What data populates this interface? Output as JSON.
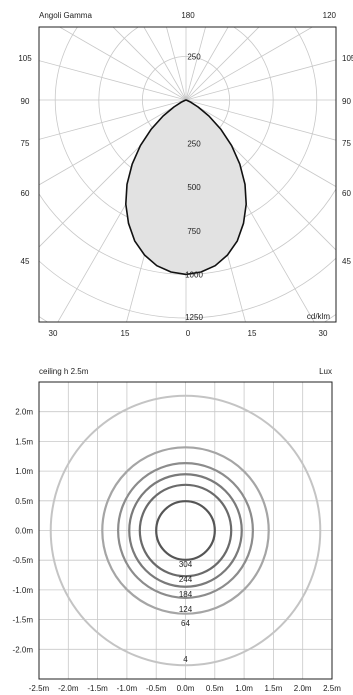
{
  "chart_data": [
    {
      "type": "polar",
      "title": "Angoli Gamma",
      "unit": "cd/klm",
      "radial_ticks": [
        "250",
        "500",
        "750",
        "1000",
        "1250"
      ],
      "radial_range": [
        0,
        1250
      ],
      "top_labels": {
        "center": "180",
        "right": "120"
      },
      "side_angle_labels": [
        "105",
        "90",
        "75",
        "60",
        "45"
      ],
      "bottom_labels": [
        "30",
        "15",
        "0",
        "15",
        "30"
      ],
      "upper_tick": "250",
      "series": [
        {
          "angles_deg": [
            0,
            5,
            10,
            15,
            20,
            25,
            30,
            35,
            40,
            45,
            50,
            55,
            60,
            65,
            70,
            75,
            80,
            85,
            90
          ],
          "values": [
            1000,
            990,
            965,
            920,
            860,
            780,
            690,
            590,
            480,
            370,
            260,
            160,
            80,
            30,
            8,
            2,
            0,
            0,
            0
          ]
        }
      ],
      "grid": true
    },
    {
      "type": "isolux",
      "title": "ceiling h 2.5m",
      "unit": "Lux",
      "x_ticks": [
        "-2.5m",
        "-2.0m",
        "-1.5m",
        "-1.0m",
        "-0.5m",
        "0.0m",
        "0.5m",
        "1.0m",
        "1.5m",
        "2.0m",
        "2.5m"
      ],
      "y_ticks": [
        "2.0m",
        "1.5m",
        "1.0m",
        "0.5m",
        "0.0m",
        "-0.5m",
        "-1.0m",
        "-1.5m",
        "-2.0m"
      ],
      "xlim": [
        -2.5,
        2.5
      ],
      "ylim": [
        -2.5,
        2.5
      ],
      "contours": [
        {
          "lux": "304",
          "radius_m": 0.5
        },
        {
          "lux": "244",
          "radius_m": 0.78
        },
        {
          "lux": "184",
          "radius_m": 0.96
        },
        {
          "lux": "124",
          "radius_m": 1.15
        },
        {
          "lux": "64",
          "radius_m": 1.42
        },
        {
          "lux": "4",
          "radius_m": 2.3
        }
      ],
      "grid": true
    }
  ]
}
